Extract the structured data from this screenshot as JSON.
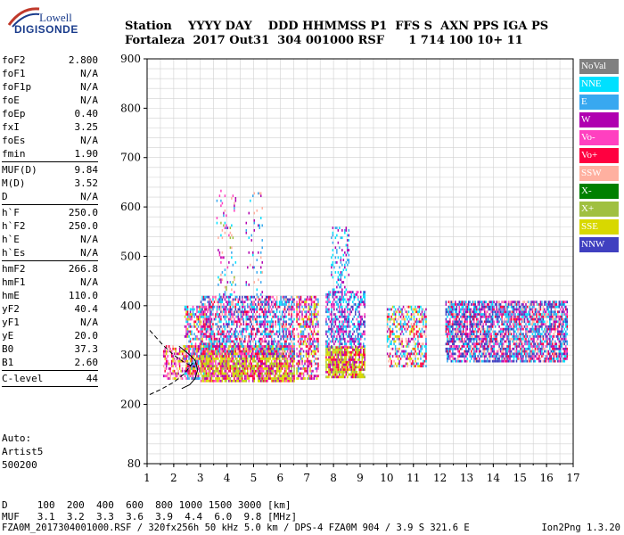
{
  "logo": {
    "line1": "Lowell",
    "line2": "DIGISONDE"
  },
  "header": {
    "line1": "Station    YYYY DAY    DDD HHMMSS P1  FFS S  AXN PPS IGA PS",
    "line2": "Fortaleza  2017 Out31  304 001000 RSF      1 714 100 10+ 11"
  },
  "params": [
    {
      "label": "foF2",
      "value": "2.800"
    },
    {
      "label": "foF1",
      "value": "N/A"
    },
    {
      "label": "foF1p",
      "value": "N/A"
    },
    {
      "label": "foE",
      "value": "N/A"
    },
    {
      "label": "foEp",
      "value": "0.40"
    },
    {
      "label": "fxI",
      "value": "3.25"
    },
    {
      "label": "foEs",
      "value": "N/A"
    },
    {
      "label": "fmin",
      "value": "1.90"
    },
    {
      "sep": true
    },
    {
      "label": "MUF(D)",
      "value": "9.84"
    },
    {
      "label": "M(D)",
      "value": "3.52"
    },
    {
      "label": "D",
      "value": "N/A"
    },
    {
      "sep": true
    },
    {
      "label": "h`F",
      "value": "250.0"
    },
    {
      "label": "h`F2",
      "value": "250.0"
    },
    {
      "label": "h`E",
      "value": "N/A"
    },
    {
      "label": "h`Es",
      "value": "N/A"
    },
    {
      "sep": true
    },
    {
      "label": "hmF2",
      "value": "266.8"
    },
    {
      "label": "hmF1",
      "value": "N/A"
    },
    {
      "label": "hmE",
      "value": "110.0"
    },
    {
      "label": "yF2",
      "value": "40.4"
    },
    {
      "label": "yF1",
      "value": "N/A"
    },
    {
      "label": "yE",
      "value": "20.0"
    },
    {
      "label": "B0",
      "value": "37.3"
    },
    {
      "label": "B1",
      "value": "2.60"
    },
    {
      "sep": true
    },
    {
      "label": "C-level",
      "value": "44"
    },
    {
      "sep": true
    }
  ],
  "auto": {
    "line1": "Auto:",
    "line2": "Artist5",
    "line3": "500200"
  },
  "legend": [
    {
      "label": "NoVal",
      "color": "#808080"
    },
    {
      "label": "NNE",
      "color": "#00e0ff"
    },
    {
      "label": "E",
      "color": "#38a8f0"
    },
    {
      "label": "W",
      "color": "#b000b0"
    },
    {
      "label": "Vo-",
      "color": "#ff40c0"
    },
    {
      "label": "Vo+",
      "color": "#ff0040"
    },
    {
      "label": "SSW",
      "color": "#ffb0a0"
    },
    {
      "label": "X-",
      "color": "#008000"
    },
    {
      "label": "X+",
      "color": "#a0c040"
    },
    {
      "label": "SSE",
      "color": "#d8d800"
    },
    {
      "label": "NNW",
      "color": "#4040c0"
    }
  ],
  "dmuf": {
    "line1": "D     100  200  400  600  800 1000 1500 3000 [km]",
    "line2": "MUF   3.1  3.2  3.3  3.6  3.9  4.4  6.0  9.8 [MHz]"
  },
  "footer": {
    "left": "FZA0M_2017304001000.RSF / 320fx256h 50 kHz 5.0 km / DPS-4 FZA0M 904 / 3.9 S 321.6 E",
    "right": "Ion2Png 1.3.20"
  },
  "chart_data": {
    "type": "scatter",
    "xlim": [
      1,
      17
    ],
    "ylim": [
      80,
      900
    ],
    "xticks": [
      1,
      2,
      3,
      4,
      5,
      6,
      7,
      8,
      9,
      10,
      11,
      12,
      13,
      14,
      15,
      16,
      17
    ],
    "yticks": [
      80,
      200,
      300,
      400,
      500,
      600,
      700,
      800,
      900
    ],
    "grid": true,
    "clusters": [
      {
        "x": [
          1.6,
          2.9
        ],
        "y": [
          255,
          320
        ],
        "density": 0.55,
        "colors": [
          "SSE",
          "Vo+",
          "Vo-",
          "W",
          "SSW"
        ]
      },
      {
        "x": [
          2.4,
          3.4
        ],
        "y": [
          255,
          400
        ],
        "density": 0.55,
        "colors": [
          "SSE",
          "Vo+",
          "W",
          "E",
          "NNE",
          "Vo-"
        ]
      },
      {
        "x": [
          3.0,
          6.5
        ],
        "y": [
          250,
          320
        ],
        "density": 0.85,
        "colors": [
          "SSE",
          "SSE",
          "SSE",
          "Vo-",
          "Vo+",
          "W",
          "X+"
        ]
      },
      {
        "x": [
          3.0,
          6.5
        ],
        "y": [
          300,
          420
        ],
        "density": 0.6,
        "colors": [
          "E",
          "NNE",
          "W",
          "Vo-",
          "Vo+",
          "SSW",
          "NNW"
        ]
      },
      {
        "x": [
          3.6,
          4.3
        ],
        "y": [
          400,
          640
        ],
        "density": 0.12,
        "colors": [
          "W",
          "Vo-",
          "SSW",
          "NNE",
          "E",
          "X+"
        ]
      },
      {
        "x": [
          4.7,
          5.3
        ],
        "y": [
          400,
          640
        ],
        "density": 0.1,
        "colors": [
          "NNE",
          "E",
          "SSW",
          "W"
        ]
      },
      {
        "x": [
          6.6,
          7.4
        ],
        "y": [
          255,
          420
        ],
        "density": 0.55,
        "colors": [
          "SSE",
          "W",
          "Vo-",
          "E",
          "Vo+"
        ]
      },
      {
        "x": [
          7.7,
          9.2
        ],
        "y": [
          258,
          320
        ],
        "density": 0.85,
        "colors": [
          "SSE",
          "SSE",
          "Vo+",
          "W",
          "X+"
        ]
      },
      {
        "x": [
          7.7,
          9.2
        ],
        "y": [
          320,
          430
        ],
        "density": 0.55,
        "colors": [
          "E",
          "NNE",
          "W",
          "Vo-",
          "NNW"
        ]
      },
      {
        "x": [
          7.9,
          8.6
        ],
        "y": [
          430,
          560
        ],
        "density": 0.25,
        "colors": [
          "NNE",
          "E",
          "W"
        ]
      },
      {
        "x": [
          10.0,
          11.5
        ],
        "y": [
          280,
          400
        ],
        "density": 0.5,
        "colors": [
          "SSW",
          "SSE",
          "NNE",
          "Vo+",
          "W",
          "E"
        ]
      },
      {
        "x": [
          12.2,
          16.8
        ],
        "y": [
          290,
          410
        ],
        "density": 0.75,
        "colors": [
          "NNW",
          "E",
          "W",
          "NNE",
          "Vo+",
          "SSW",
          "Vo-",
          "NNW"
        ]
      }
    ],
    "curves": [
      {
        "style": "dashed",
        "x": [
          1.1,
          1.6,
          2.0,
          2.4,
          2.8
        ],
        "y": [
          350,
          320,
          300,
          285,
          275
        ]
      },
      {
        "style": "dashed",
        "x": [
          1.1,
          1.5,
          2.0,
          2.4,
          2.8
        ],
        "y": [
          220,
          230,
          245,
          262,
          290
        ]
      },
      {
        "style": "solid",
        "x": [
          2.2,
          2.5,
          2.8,
          2.9,
          2.8,
          2.6,
          2.3
        ],
        "y": [
          318,
          305,
          290,
          270,
          252,
          240,
          232
        ]
      }
    ]
  }
}
